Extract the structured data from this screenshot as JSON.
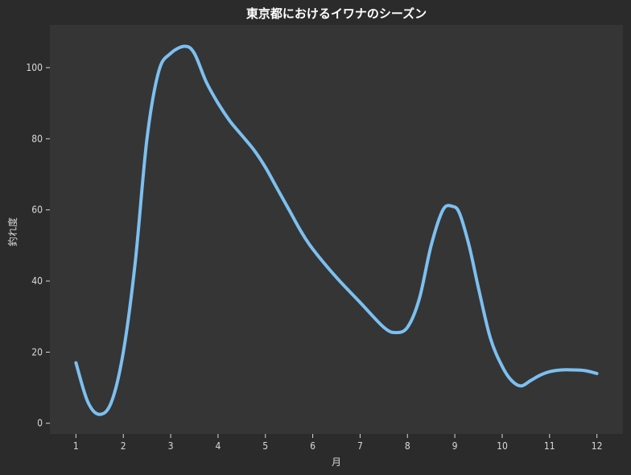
{
  "chart_data": {
    "type": "line",
    "title": "東京都におけるイワナのシーズン",
    "xlabel": "月",
    "ylabel": "釣れ度",
    "x": [
      1,
      2,
      3,
      4,
      5,
      6,
      7,
      8,
      9,
      10,
      11,
      12
    ],
    "xlim": [
      0.45,
      12.55
    ],
    "ylim": [
      -3,
      112
    ],
    "yticks": [
      0,
      20,
      40,
      60,
      80,
      100
    ],
    "series": [
      {
        "smooth_x": [
          1.0,
          1.25,
          1.5,
          1.75,
          2.0,
          2.25,
          2.5,
          2.75,
          3.0,
          3.3,
          3.5,
          3.75,
          4.0,
          4.25,
          4.5,
          4.75,
          5.0,
          5.25,
          5.5,
          5.75,
          6.0,
          6.5,
          7.0,
          7.5,
          7.75,
          8.0,
          8.25,
          8.5,
          8.75,
          8.95,
          9.1,
          9.3,
          9.5,
          9.75,
          10.0,
          10.2,
          10.4,
          10.6,
          10.8,
          11.0,
          11.25,
          11.5,
          11.75,
          12.0
        ],
        "smooth_y": [
          17,
          6,
          2.5,
          6,
          20,
          45,
          80,
          99,
          104,
          106,
          104,
          96,
          90,
          85,
          81,
          77,
          72,
          66,
          60,
          54,
          49,
          41,
          34,
          27,
          25.5,
          27,
          35,
          50,
          60,
          61,
          59,
          50,
          38,
          24,
          16,
          12,
          10.5,
          12,
          13.5,
          14.5,
          15,
          15,
          14.8,
          14
        ]
      }
    ],
    "colors": {
      "line": "#7cc0f0",
      "plot_bg": "#353535",
      "figure_bg": "#2b2b2b",
      "text": "#d8d8d8",
      "title": "#ffffff"
    },
    "grid": false
  }
}
